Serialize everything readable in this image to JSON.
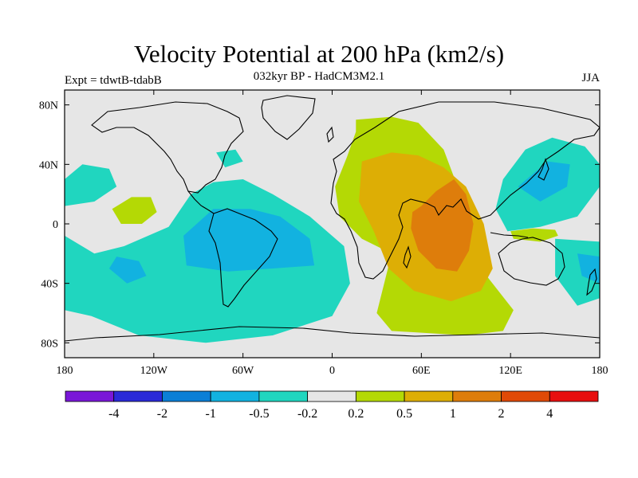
{
  "header": {
    "title": "Velocity Potential at 200 hPa (km2/s)",
    "subtitle": "032kyr BP - HadCM3M2.1",
    "experiment": "Expt = tdwtB-tdabB",
    "season": "JJA"
  },
  "chart_data": {
    "type": "heatmap",
    "title": "Velocity Potential at 200 hPa (km2/s)",
    "subtitle": "032kyr BP - HadCM3M2.1",
    "annotations": [
      "Expt = tdwtB-tdabB",
      "JJA"
    ],
    "map_projection": "cylindrical equidistant",
    "xlim": [
      -180,
      180
    ],
    "ylim": [
      -90,
      90
    ],
    "x_ticks": [
      {
        "value": -180,
        "label": "180"
      },
      {
        "value": -120,
        "label": "120W"
      },
      {
        "value": -60,
        "label": "60W"
      },
      {
        "value": 0,
        "label": "0"
      },
      {
        "value": 60,
        "label": "60E"
      },
      {
        "value": 120,
        "label": "120E"
      },
      {
        "value": 180,
        "label": "180"
      }
    ],
    "y_ticks": [
      {
        "value": 80,
        "label": "80N"
      },
      {
        "value": 40,
        "label": "40N"
      },
      {
        "value": 0,
        "label": "0"
      },
      {
        "value": -40,
        "label": "40S"
      },
      {
        "value": -80,
        "label": "80S"
      }
    ],
    "colorbar": {
      "boundaries": [
        -4,
        -2,
        -1,
        -0.5,
        -0.2,
        0.2,
        0.5,
        1,
        2,
        4
      ],
      "labels": [
        "-4",
        "-2",
        "-1",
        "-0.5",
        "-0.2",
        "0.2",
        "0.5",
        "1",
        "2",
        "4"
      ],
      "colors": [
        "#7a17d8",
        "#2a2ad8",
        "#0b7fd6",
        "#12b2e0",
        "#20d6bf",
        "#e6e6e6",
        "#b4d905",
        "#ddae05",
        "#de7d0b",
        "#e04a06",
        "#e80f0f"
      ]
    },
    "regions": [
      {
        "name": "Indian Ocean / Africa / Asia positive center",
        "category": "0.2 to 0.5",
        "polygon": [
          [
            16,
            70
          ],
          [
            40,
            72
          ],
          [
            58,
            68
          ],
          [
            75,
            50
          ],
          [
            90,
            10
          ],
          [
            100,
            -30
          ],
          [
            122,
            -58
          ],
          [
            115,
            -72
          ],
          [
            90,
            -75
          ],
          [
            40,
            -72
          ],
          [
            30,
            -60
          ],
          [
            40,
            -20
          ],
          [
            20,
            -10
          ],
          [
            5,
            5
          ],
          [
            2,
            25
          ],
          [
            10,
            45
          ],
          [
            16,
            62
          ]
        ]
      },
      {
        "name": "Indian Ocean / Arabia ring",
        "category": "0.5 to 1",
        "polygon": [
          [
            20,
            42
          ],
          [
            40,
            48
          ],
          [
            58,
            46
          ],
          [
            75,
            38
          ],
          [
            90,
            25
          ],
          [
            102,
            0
          ],
          [
            108,
            -30
          ],
          [
            100,
            -45
          ],
          [
            80,
            -52
          ],
          [
            55,
            -45
          ],
          [
            38,
            -30
          ],
          [
            28,
            -5
          ],
          [
            18,
            15
          ]
        ]
      },
      {
        "name": "Indian Ocean core",
        "category": "1 to 2",
        "polygon": [
          [
            54,
            8
          ],
          [
            60,
            12
          ],
          [
            70,
            22
          ],
          [
            82,
            30
          ],
          [
            90,
            20
          ],
          [
            95,
            0
          ],
          [
            92,
            -18
          ],
          [
            84,
            -32
          ],
          [
            70,
            -30
          ],
          [
            58,
            -18
          ],
          [
            53,
            -3
          ]
        ]
      },
      {
        "name": "Maritime Continent positive",
        "category": "0.2 to 0.5",
        "polygon": [
          [
            120,
            -5
          ],
          [
            135,
            -3
          ],
          [
            150,
            -4
          ],
          [
            152,
            -8
          ],
          [
            140,
            -12
          ],
          [
            122,
            -10
          ]
        ]
      },
      {
        "name": "Central Pacific positive",
        "category": "0.2 to 0.5",
        "polygon": [
          [
            -148,
            10
          ],
          [
            -135,
            18
          ],
          [
            -122,
            18
          ],
          [
            -118,
            8
          ],
          [
            -128,
            0
          ],
          [
            -142,
            0
          ]
        ]
      },
      {
        "name": "South America / Atlantic / SE Pacific negative",
        "category": "-0.5 to -0.2",
        "polygon": [
          [
            -180,
            -8
          ],
          [
            -160,
            -20
          ],
          [
            -140,
            -15
          ],
          [
            -110,
            -2
          ],
          [
            -95,
            20
          ],
          [
            -80,
            28
          ],
          [
            -60,
            30
          ],
          [
            -40,
            20
          ],
          [
            -15,
            5
          ],
          [
            8,
            -15
          ],
          [
            12,
            -40
          ],
          [
            0,
            -62
          ],
          [
            -40,
            -75
          ],
          [
            -85,
            -80
          ],
          [
            -130,
            -75
          ],
          [
            -162,
            -62
          ],
          [
            -180,
            -58
          ]
        ]
      },
      {
        "name": "South America core",
        "category": "-1 to -0.5",
        "polygon": [
          [
            -100,
            -8
          ],
          [
            -80,
            10
          ],
          [
            -55,
            10
          ],
          [
            -35,
            5
          ],
          [
            -15,
            -10
          ],
          [
            -12,
            -28
          ],
          [
            -40,
            -30
          ],
          [
            -70,
            -32
          ],
          [
            -98,
            -28
          ]
        ]
      },
      {
        "name": "Southwest Pacific core",
        "category": "-1 to -0.5",
        "polygon": [
          [
            -145,
            -22
          ],
          [
            -130,
            -25
          ],
          [
            -125,
            -35
          ],
          [
            -138,
            -40
          ],
          [
            -150,
            -30
          ]
        ]
      },
      {
        "name": "North Pacific negative",
        "category": "-0.5 to -0.2",
        "polygon": [
          [
            -180,
            30
          ],
          [
            -168,
            40
          ],
          [
            -150,
            37
          ],
          [
            -145,
            25
          ],
          [
            -160,
            15
          ],
          [
            -180,
            12
          ]
        ]
      },
      {
        "name": "Northwest Pacific / East Asia negative",
        "category": "-0.5 to -0.2",
        "polygon": [
          [
            110,
            10
          ],
          [
            115,
            30
          ],
          [
            130,
            50
          ],
          [
            148,
            58
          ],
          [
            170,
            52
          ],
          [
            180,
            40
          ],
          [
            180,
            25
          ],
          [
            165,
            5
          ],
          [
            140,
            -2
          ],
          [
            118,
            -5
          ]
        ]
      },
      {
        "name": "Northwest Pacific core",
        "category": "-1 to -0.5",
        "polygon": [
          [
            125,
            25
          ],
          [
            145,
            42
          ],
          [
            160,
            40
          ],
          [
            158,
            25
          ],
          [
            140,
            15
          ]
        ]
      },
      {
        "name": "Southwest Pacific (Australia east) negative",
        "category": "-0.5 to -0.2",
        "polygon": [
          [
            150,
            -10
          ],
          [
            180,
            -12
          ],
          [
            180,
            -50
          ],
          [
            165,
            -55
          ],
          [
            150,
            -35
          ]
        ]
      },
      {
        "name": "Southwest Pacific (Australia east) core",
        "category": "-1 to -0.5",
        "polygon": [
          [
            165,
            -20
          ],
          [
            180,
            -22
          ],
          [
            180,
            -40
          ],
          [
            168,
            -35
          ]
        ]
      },
      {
        "name": "Northeast North America negative",
        "category": "-0.5 to -0.2",
        "polygon": [
          [
            -78,
            48
          ],
          [
            -65,
            50
          ],
          [
            -60,
            42
          ],
          [
            -72,
            38
          ]
        ]
      }
    ]
  }
}
